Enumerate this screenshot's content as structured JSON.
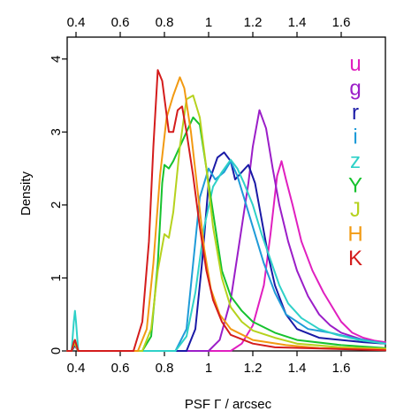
{
  "chart_data": {
    "type": "line",
    "xlabel": "PSF Γ / arcsec",
    "ylabel": "Density",
    "xlim": [
      0.36,
      1.8
    ],
    "ylim": [
      0,
      4.3
    ],
    "x_ticks": [
      "0.4",
      "0.6",
      "0.8",
      "1",
      "1.2",
      "1.4",
      "1.6"
    ],
    "x_tick_values": [
      0.4,
      0.6,
      0.8,
      1.0,
      1.2,
      1.4,
      1.6
    ],
    "y_ticks": [
      "0",
      "1",
      "2",
      "3",
      "4"
    ],
    "y_tick_values": [
      0,
      1,
      2,
      3,
      4
    ],
    "top_axis_ticks": true,
    "grid": false,
    "legend_position": "right",
    "series": [
      {
        "name": "u",
        "color": "#e01fbf",
        "points": [
          [
            0.36,
            0
          ],
          [
            0.38,
            0
          ],
          [
            0.39,
            0.06
          ],
          [
            0.395,
            0.1
          ],
          [
            0.4,
            0.06
          ],
          [
            0.41,
            0
          ],
          [
            1.1,
            0
          ],
          [
            1.15,
            0.1
          ],
          [
            1.2,
            0.35
          ],
          [
            1.25,
            0.9
          ],
          [
            1.28,
            1.6
          ],
          [
            1.31,
            2.4
          ],
          [
            1.33,
            2.6
          ],
          [
            1.35,
            2.35
          ],
          [
            1.38,
            2.0
          ],
          [
            1.42,
            1.5
          ],
          [
            1.47,
            1.1
          ],
          [
            1.52,
            0.8
          ],
          [
            1.56,
            0.6
          ],
          [
            1.6,
            0.4
          ],
          [
            1.65,
            0.25
          ],
          [
            1.7,
            0.18
          ],
          [
            1.75,
            0.14
          ],
          [
            1.8,
            0.12
          ]
        ]
      },
      {
        "name": "g",
        "color": "#9b1ec8",
        "points": [
          [
            0.36,
            0
          ],
          [
            0.38,
            0
          ],
          [
            0.39,
            0.05
          ],
          [
            0.395,
            0.08
          ],
          [
            0.4,
            0.05
          ],
          [
            0.41,
            0
          ],
          [
            1.0,
            0
          ],
          [
            1.05,
            0.15
          ],
          [
            1.1,
            0.7
          ],
          [
            1.14,
            1.5
          ],
          [
            1.18,
            2.3
          ],
          [
            1.2,
            2.8
          ],
          [
            1.23,
            3.3
          ],
          [
            1.26,
            3.05
          ],
          [
            1.29,
            2.5
          ],
          [
            1.32,
            2.0
          ],
          [
            1.36,
            1.5
          ],
          [
            1.4,
            1.1
          ],
          [
            1.45,
            0.75
          ],
          [
            1.5,
            0.5
          ],
          [
            1.55,
            0.35
          ],
          [
            1.6,
            0.25
          ],
          [
            1.7,
            0.15
          ],
          [
            1.8,
            0.1
          ]
        ]
      },
      {
        "name": "r",
        "color": "#1a1aa6",
        "points": [
          [
            0.36,
            0
          ],
          [
            0.38,
            0
          ],
          [
            0.39,
            0.05
          ],
          [
            0.395,
            0.07
          ],
          [
            0.4,
            0.05
          ],
          [
            0.41,
            0
          ],
          [
            0.9,
            0
          ],
          [
            0.94,
            0.3
          ],
          [
            0.97,
            1.2
          ],
          [
            1.0,
            2.3
          ],
          [
            1.04,
            2.65
          ],
          [
            1.07,
            2.72
          ],
          [
            1.1,
            2.6
          ],
          [
            1.12,
            2.35
          ],
          [
            1.15,
            2.45
          ],
          [
            1.18,
            2.55
          ],
          [
            1.21,
            2.3
          ],
          [
            1.24,
            1.8
          ],
          [
            1.27,
            1.3
          ],
          [
            1.3,
            0.9
          ],
          [
            1.35,
            0.5
          ],
          [
            1.4,
            0.3
          ],
          [
            1.5,
            0.18
          ],
          [
            1.6,
            0.15
          ],
          [
            1.7,
            0.12
          ],
          [
            1.8,
            0.1
          ]
        ]
      },
      {
        "name": "i",
        "color": "#1f9bd8",
        "points": [
          [
            0.36,
            0
          ],
          [
            0.38,
            0
          ],
          [
            0.39,
            0.1
          ],
          [
            0.395,
            0.15
          ],
          [
            0.4,
            0.1
          ],
          [
            0.41,
            0
          ],
          [
            0.85,
            0
          ],
          [
            0.9,
            0.3
          ],
          [
            0.93,
            1.2
          ],
          [
            0.96,
            2.1
          ],
          [
            1.0,
            2.5
          ],
          [
            1.03,
            2.35
          ],
          [
            1.07,
            2.45
          ],
          [
            1.1,
            2.6
          ],
          [
            1.13,
            2.4
          ],
          [
            1.16,
            2.1
          ],
          [
            1.2,
            1.7
          ],
          [
            1.25,
            1.2
          ],
          [
            1.3,
            0.8
          ],
          [
            1.35,
            0.5
          ],
          [
            1.45,
            0.3
          ],
          [
            1.55,
            0.25
          ],
          [
            1.65,
            0.18
          ],
          [
            1.8,
            0.1
          ]
        ]
      },
      {
        "name": "z",
        "color": "#2fd1c8",
        "points": [
          [
            0.36,
            0
          ],
          [
            0.38,
            0
          ],
          [
            0.39,
            0.4
          ],
          [
            0.395,
            0.55
          ],
          [
            0.4,
            0.4
          ],
          [
            0.41,
            0
          ],
          [
            0.85,
            0
          ],
          [
            0.9,
            0.2
          ],
          [
            0.94,
            0.8
          ],
          [
            0.98,
            1.7
          ],
          [
            1.02,
            2.25
          ],
          [
            1.06,
            2.45
          ],
          [
            1.1,
            2.62
          ],
          [
            1.13,
            2.5
          ],
          [
            1.16,
            2.3
          ],
          [
            1.2,
            2.0
          ],
          [
            1.24,
            1.6
          ],
          [
            1.28,
            1.25
          ],
          [
            1.32,
            0.9
          ],
          [
            1.36,
            0.65
          ],
          [
            1.42,
            0.45
          ],
          [
            1.5,
            0.3
          ],
          [
            1.58,
            0.22
          ],
          [
            1.68,
            0.15
          ],
          [
            1.8,
            0.1
          ]
        ]
      },
      {
        "name": "Y",
        "color": "#16c22e",
        "points": [
          [
            0.36,
            0
          ],
          [
            0.38,
            0
          ],
          [
            0.39,
            0.1
          ],
          [
            0.395,
            0.12
          ],
          [
            0.4,
            0.08
          ],
          [
            0.41,
            0
          ],
          [
            0.7,
            0
          ],
          [
            0.74,
            0.2
          ],
          [
            0.77,
            1.2
          ],
          [
            0.79,
            2.3
          ],
          [
            0.8,
            2.55
          ],
          [
            0.82,
            2.5
          ],
          [
            0.84,
            2.6
          ],
          [
            0.87,
            2.8
          ],
          [
            0.9,
            3.0
          ],
          [
            0.93,
            3.2
          ],
          [
            0.96,
            3.1
          ],
          [
            0.99,
            2.5
          ],
          [
            1.03,
            1.7
          ],
          [
            1.06,
            1.1
          ],
          [
            1.1,
            0.75
          ],
          [
            1.15,
            0.55
          ],
          [
            1.2,
            0.4
          ],
          [
            1.3,
            0.25
          ],
          [
            1.4,
            0.15
          ],
          [
            1.6,
            0.08
          ],
          [
            1.8,
            0.04
          ]
        ]
      },
      {
        "name": "J",
        "color": "#b6d21e",
        "points": [
          [
            0.36,
            0
          ],
          [
            0.38,
            0
          ],
          [
            0.39,
            0.08
          ],
          [
            0.395,
            0.1
          ],
          [
            0.4,
            0.06
          ],
          [
            0.41,
            0
          ],
          [
            0.7,
            0
          ],
          [
            0.74,
            0.3
          ],
          [
            0.77,
            1.1
          ],
          [
            0.8,
            1.6
          ],
          [
            0.82,
            1.55
          ],
          [
            0.84,
            1.9
          ],
          [
            0.87,
            2.8
          ],
          [
            0.9,
            3.45
          ],
          [
            0.93,
            3.5
          ],
          [
            0.96,
            3.2
          ],
          [
            0.99,
            2.5
          ],
          [
            1.02,
            1.7
          ],
          [
            1.06,
            1.0
          ],
          [
            1.1,
            0.6
          ],
          [
            1.15,
            0.4
          ],
          [
            1.2,
            0.28
          ],
          [
            1.3,
            0.18
          ],
          [
            1.4,
            0.1
          ],
          [
            1.6,
            0.05
          ],
          [
            1.8,
            0.03
          ]
        ]
      },
      {
        "name": "H",
        "color": "#f29a12",
        "points": [
          [
            0.36,
            0
          ],
          [
            0.38,
            0
          ],
          [
            0.39,
            0.12
          ],
          [
            0.395,
            0.15
          ],
          [
            0.4,
            0.1
          ],
          [
            0.41,
            0
          ],
          [
            0.68,
            0
          ],
          [
            0.72,
            0.3
          ],
          [
            0.75,
            1.2
          ],
          [
            0.78,
            2.4
          ],
          [
            0.81,
            3.2
          ],
          [
            0.84,
            3.5
          ],
          [
            0.87,
            3.75
          ],
          [
            0.89,
            3.6
          ],
          [
            0.92,
            3.0
          ],
          [
            0.95,
            2.2
          ],
          [
            0.98,
            1.4
          ],
          [
            1.01,
            0.85
          ],
          [
            1.05,
            0.5
          ],
          [
            1.1,
            0.3
          ],
          [
            1.2,
            0.15
          ],
          [
            1.35,
            0.08
          ],
          [
            1.5,
            0.04
          ],
          [
            1.8,
            0.02
          ]
        ]
      },
      {
        "name": "K",
        "color": "#d41c1c",
        "points": [
          [
            0.36,
            0
          ],
          [
            0.38,
            0
          ],
          [
            0.39,
            0.12
          ],
          [
            0.395,
            0.15
          ],
          [
            0.4,
            0.1
          ],
          [
            0.41,
            0
          ],
          [
            0.66,
            0
          ],
          [
            0.7,
            0.4
          ],
          [
            0.73,
            1.5
          ],
          [
            0.75,
            2.8
          ],
          [
            0.77,
            3.85
          ],
          [
            0.79,
            3.7
          ],
          [
            0.82,
            3.0
          ],
          [
            0.84,
            3.0
          ],
          [
            0.86,
            3.3
          ],
          [
            0.88,
            3.35
          ],
          [
            0.9,
            3.0
          ],
          [
            0.93,
            2.4
          ],
          [
            0.96,
            1.7
          ],
          [
            0.99,
            1.1
          ],
          [
            1.02,
            0.7
          ],
          [
            1.06,
            0.4
          ],
          [
            1.1,
            0.22
          ],
          [
            1.2,
            0.1
          ],
          [
            1.3,
            0.05
          ],
          [
            1.8,
            0.01
          ]
        ]
      }
    ]
  }
}
